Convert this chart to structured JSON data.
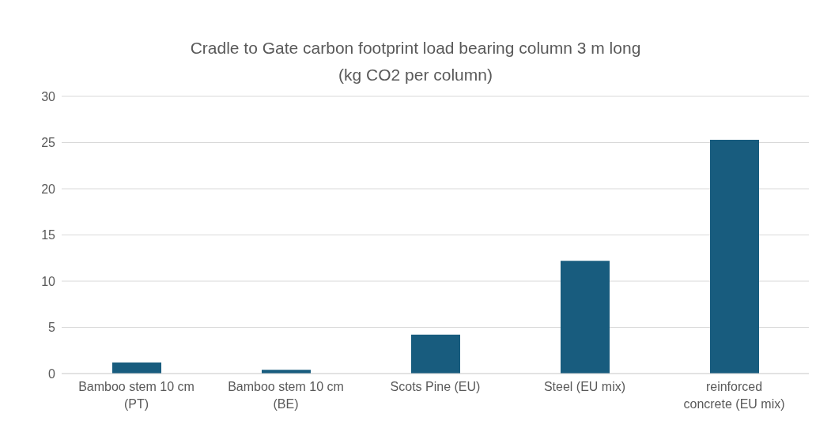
{
  "chart_data": {
    "type": "bar",
    "title": "Cradle to Gate carbon footprint load bearing column 3 m long",
    "subtitle": "(kg CO2 per column)",
    "categories": [
      "Bamboo stem 10 cm (PT)",
      "Bamboo stem 10 cm (BE)",
      "Scots Pine (EU)",
      "Steel (EU mix)",
      "reinforced concrete (EU mix)"
    ],
    "values": [
      1.2,
      0.4,
      4.2,
      12.2,
      25.3
    ],
    "color": "#185c7e",
    "ylim": [
      0,
      30
    ],
    "yticks": [
      0,
      5,
      10,
      15,
      20,
      25,
      30
    ],
    "grid": "y"
  }
}
